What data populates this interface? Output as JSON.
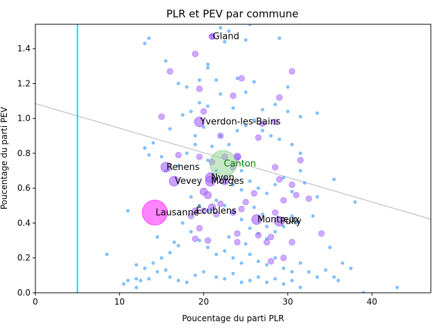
{
  "chart_data": {
    "type": "scatter",
    "title": "PLR et PEV par commune",
    "xlabel": "Poucentage du parti PLR",
    "ylabel": "Poucentage du parti PEV",
    "xlim": [
      0,
      47
    ],
    "ylim": [
      0,
      1.54
    ],
    "xticks": [
      "0",
      "10",
      "20",
      "30",
      "40"
    ],
    "xtick_values": [
      0,
      10,
      20,
      30,
      40
    ],
    "yticks": [
      "0.0",
      "0.2",
      "0.4",
      "0.6",
      "0.8",
      "1.0",
      "1.2",
      "1.4"
    ],
    "ytick_values": [
      0,
      0.2,
      0.4,
      0.6,
      0.8,
      1.0,
      1.2,
      1.4
    ],
    "grid": false,
    "vertical_line": {
      "x": 5,
      "color": "#00e5e5"
    },
    "regression_line": {
      "intercept": 1.085,
      "slope": -0.0141,
      "color": "#c0c0c0"
    },
    "colors": {
      "small_points": "#4da6ff",
      "medium_points": "#a566ff",
      "large_points": "#ff33ff",
      "canton": "#8fd18f",
      "canton_label": "#008000"
    },
    "series": [
      {
        "size": "small",
        "points": [
          [
            13.0,
            1.43
          ],
          [
            13.5,
            1.46
          ],
          [
            15.5,
            1.33
          ],
          [
            17.0,
            1.2
          ],
          [
            18.0,
            1.18
          ],
          [
            19.5,
            1.22
          ],
          [
            20.5,
            1.31
          ],
          [
            21.0,
            1.48
          ],
          [
            20.5,
            1.29
          ],
          [
            22.0,
            1.52
          ],
          [
            23.0,
            1.5
          ],
          [
            25.0,
            1.45
          ],
          [
            29.0,
            1.46
          ],
          [
            30.0,
            1.18
          ],
          [
            21.5,
            1.22
          ],
          [
            24.0,
            1.23
          ],
          [
            26.0,
            1.21
          ],
          [
            25.0,
            1.15
          ],
          [
            23.5,
            1.06
          ],
          [
            22.0,
            1.14
          ],
          [
            20.5,
            1.07
          ],
          [
            19.5,
            1.09
          ],
          [
            18.5,
            1.04
          ],
          [
            17.5,
            1.02
          ],
          [
            16.0,
            0.94
          ],
          [
            14.0,
            0.86
          ],
          [
            13.0,
            0.83
          ],
          [
            13.5,
            0.79
          ],
          [
            15.0,
            0.78
          ],
          [
            15.5,
            0.7
          ],
          [
            17.0,
            0.73
          ],
          [
            18.0,
            0.8
          ],
          [
            19.0,
            0.9
          ],
          [
            20.0,
            0.95
          ],
          [
            21.0,
            0.84
          ],
          [
            22.0,
            0.9
          ],
          [
            23.0,
            0.85
          ],
          [
            24.0,
            0.93
          ],
          [
            25.0,
            0.96
          ],
          [
            26.0,
            0.99
          ],
          [
            27.0,
            0.93
          ],
          [
            28.0,
            0.9
          ],
          [
            29.0,
            0.88
          ],
          [
            30.5,
            0.85
          ],
          [
            31.5,
            0.8
          ],
          [
            31.5,
            1.01
          ],
          [
            28.5,
            1.08
          ],
          [
            27.0,
            1.05
          ],
          [
            30.0,
            1.04
          ],
          [
            19.0,
            0.85
          ],
          [
            20.5,
            0.76
          ],
          [
            21.5,
            0.7
          ],
          [
            22.5,
            0.66
          ],
          [
            23.5,
            0.62
          ],
          [
            24.5,
            0.7
          ],
          [
            25.5,
            0.64
          ],
          [
            26.5,
            0.6
          ],
          [
            27.5,
            0.57
          ],
          [
            28.5,
            0.62
          ],
          [
            29.5,
            0.66
          ],
          [
            30.5,
            0.58
          ],
          [
            31.5,
            0.7
          ],
          [
            32.0,
            0.63
          ],
          [
            33.5,
            0.55
          ],
          [
            35.5,
            0.65
          ],
          [
            38.0,
            0.52
          ],
          [
            18.5,
            0.55
          ],
          [
            19.5,
            0.5
          ],
          [
            20.5,
            0.47
          ],
          [
            21.5,
            0.53
          ],
          [
            22.5,
            0.5
          ],
          [
            23.5,
            0.46
          ],
          [
            24.5,
            0.42
          ],
          [
            25.5,
            0.37
          ],
          [
            26.5,
            0.34
          ],
          [
            27.5,
            0.31
          ],
          [
            28.5,
            0.35
          ],
          [
            29.5,
            0.38
          ],
          [
            30.5,
            0.44
          ],
          [
            31.0,
            0.4
          ],
          [
            33.0,
            0.44
          ],
          [
            17.5,
            0.4
          ],
          [
            18.5,
            0.35
          ],
          [
            19.5,
            0.3
          ],
          [
            20.5,
            0.26
          ],
          [
            21.5,
            0.22
          ],
          [
            22.5,
            0.24
          ],
          [
            23.5,
            0.2
          ],
          [
            24.5,
            0.17
          ],
          [
            25.5,
            0.22
          ],
          [
            26.5,
            0.18
          ],
          [
            27.5,
            0.16
          ],
          [
            28.5,
            0.2
          ],
          [
            29.5,
            0.14
          ],
          [
            30.5,
            0.12
          ],
          [
            31.5,
            0.17
          ],
          [
            17.0,
            0.27
          ],
          [
            16.0,
            0.23
          ],
          [
            15.0,
            0.2
          ],
          [
            14.0,
            0.17
          ],
          [
            13.0,
            0.14
          ],
          [
            12.0,
            0.16
          ],
          [
            11.0,
            0.07
          ],
          [
            10.5,
            0.05
          ],
          [
            12.0,
            0.08
          ],
          [
            12.5,
            0.07
          ],
          [
            13.5,
            0.08
          ],
          [
            14.5,
            0.12
          ],
          [
            15.5,
            0.13
          ],
          [
            16.0,
            0.09
          ],
          [
            17.0,
            0.07
          ],
          [
            18.0,
            0.06
          ],
          [
            19.0,
            0.1
          ],
          [
            20.0,
            0.12
          ],
          [
            21.5,
            0.09
          ],
          [
            22.5,
            0.08
          ],
          [
            23.5,
            0.11
          ],
          [
            24.5,
            0.06
          ],
          [
            25.5,
            0.07
          ],
          [
            26.5,
            0.09
          ],
          [
            27.5,
            0.06
          ],
          [
            28.5,
            0.08
          ],
          [
            29.5,
            0.05
          ],
          [
            30.5,
            0.07
          ],
          [
            31.5,
            0.03
          ],
          [
            32.5,
            0.12
          ],
          [
            33.5,
            0.09
          ],
          [
            34.5,
            0.13
          ],
          [
            35.5,
            0.09
          ],
          [
            36.0,
            0.07
          ],
          [
            35.0,
            0.26
          ],
          [
            36.5,
            0.17
          ],
          [
            37.5,
            0.14
          ],
          [
            43.0,
            0.03
          ],
          [
            39.0,
            0.0
          ],
          [
            8.5,
            0.22
          ],
          [
            11.0,
            0.47
          ],
          [
            12.0,
            0.03
          ],
          [
            14.5,
            0.32
          ],
          [
            16.5,
            0.29
          ],
          [
            33.5,
            1.03
          ],
          [
            25.5,
            1.54
          ],
          [
            22.5,
            1.44
          ],
          [
            24.0,
            0.77
          ],
          [
            24.5,
            0.59
          ],
          [
            26.0,
            0.49
          ],
          [
            27.0,
            0.45
          ],
          [
            27.5,
            0.38
          ],
          [
            25.0,
            0.28
          ],
          [
            23.0,
            0.32
          ]
        ]
      },
      {
        "size": "medium",
        "points": [
          [
            19.0,
            1.37
          ],
          [
            21.0,
            1.47
          ],
          [
            24.5,
            1.23
          ],
          [
            29.0,
            1.12
          ],
          [
            30.5,
            1.27
          ],
          [
            16.0,
            1.27
          ],
          [
            23.5,
            1.13
          ],
          [
            19.5,
            1.17
          ],
          [
            15.0,
            1.01
          ],
          [
            20.0,
            1.04
          ],
          [
            22.0,
            0.9
          ],
          [
            27.0,
            0.97
          ],
          [
            26.5,
            0.89
          ],
          [
            28.5,
            0.98
          ],
          [
            17.0,
            0.79
          ],
          [
            19.5,
            0.78
          ],
          [
            22.5,
            0.78
          ],
          [
            21.0,
            0.75
          ],
          [
            23.5,
            0.72
          ],
          [
            24.0,
            0.78
          ],
          [
            28.5,
            0.72
          ],
          [
            29.0,
            0.65
          ],
          [
            31.5,
            0.76
          ],
          [
            30.5,
            0.62
          ],
          [
            31.0,
            0.56
          ],
          [
            32.5,
            0.54
          ],
          [
            26.0,
            0.57
          ],
          [
            25.0,
            0.52
          ],
          [
            24.5,
            0.48
          ],
          [
            23.5,
            0.46
          ],
          [
            22.0,
            0.51
          ],
          [
            21.5,
            0.45
          ],
          [
            20.0,
            0.47
          ],
          [
            18.5,
            0.44
          ],
          [
            19.5,
            0.37
          ],
          [
            29.5,
            0.53
          ],
          [
            28.5,
            0.46
          ],
          [
            24.0,
            0.34
          ],
          [
            26.5,
            0.33
          ],
          [
            28.0,
            0.32
          ],
          [
            30.5,
            0.29
          ],
          [
            34.0,
            0.34
          ],
          [
            24.0,
            0.29
          ],
          [
            27.5,
            0.29
          ],
          [
            28.0,
            0.18
          ],
          [
            19.0,
            0.31
          ],
          [
            20.5,
            0.3
          ],
          [
            29.5,
            0.2
          ]
        ]
      },
      {
        "size": "large",
        "points": [
          [
            24.0,
            0.78
          ],
          [
            20.5,
            0.56
          ],
          [
            22.5,
            0.64
          ],
          [
            20.0,
            0.58
          ],
          [
            21.0,
            0.49
          ]
        ]
      }
    ],
    "labeled_points": [
      {
        "label": "Gland",
        "x": 21.0,
        "y": 1.47,
        "size": "medium"
      },
      {
        "label": "Yverdon-les-Bains",
        "x": 19.5,
        "y": 0.98,
        "size": "medium_large"
      },
      {
        "label": "Renens",
        "x": 15.5,
        "y": 0.72,
        "size": "medium_large"
      },
      {
        "label": "Nyon",
        "x": 20.8,
        "y": 0.66,
        "size": "medium_large"
      },
      {
        "label": "Vevey",
        "x": 16.5,
        "y": 0.64,
        "size": "medium_large"
      },
      {
        "label": "Morges",
        "x": 20.8,
        "y": 0.64,
        "size": "medium_large"
      },
      {
        "label": "Écublens",
        "x": 19.0,
        "y": 0.47,
        "size": "medium"
      },
      {
        "label": "Lausanne",
        "x": 14.2,
        "y": 0.46,
        "size": "huge"
      },
      {
        "label": "Montreux",
        "x": 26.3,
        "y": 0.42,
        "size": "medium_large"
      },
      {
        "label": "Pully",
        "x": 29.0,
        "y": 0.41,
        "size": "medium_large"
      },
      {
        "label": "Canton",
        "x": 22.3,
        "y": 0.74,
        "size": "canton"
      }
    ]
  }
}
